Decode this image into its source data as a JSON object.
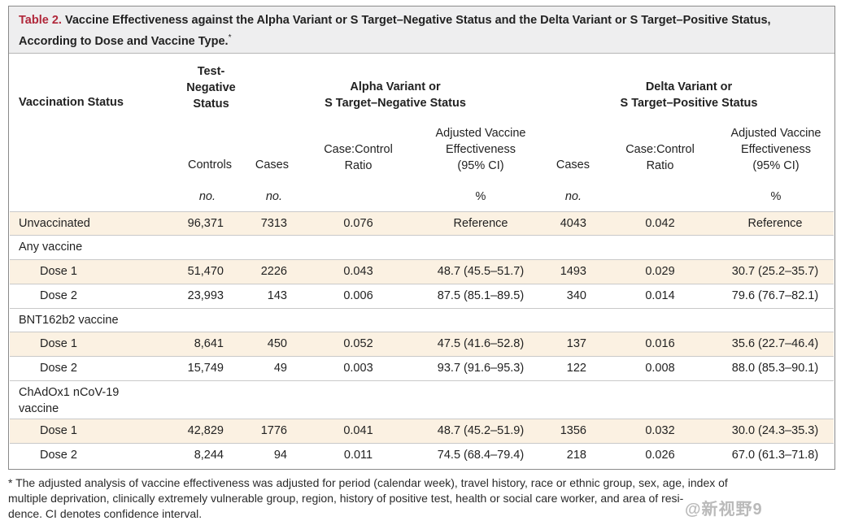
{
  "title": {
    "lead": "Table 2.",
    "text": "Vaccine Effectiveness against the Alpha Variant or S Target–Negative Status and the Delta Variant or S Target–Positive Status, According to Dose and Vaccine Type.",
    "line1": "Vaccine Effectiveness against the Alpha Variant or S Target–Negative Status and the Delta Variant or S Target–Positive Status,",
    "line2": "According to Dose and Vaccine Type.",
    "marker": "*"
  },
  "header": {
    "vaccination_status": "Vaccination Status",
    "test_negative": [
      "Test-",
      "Negative",
      "Status"
    ],
    "alpha_group": [
      "Alpha Variant or",
      "S Target–Negative Status"
    ],
    "delta_group": [
      "Delta Variant or",
      "S Target–Positive Status"
    ],
    "controls": "Controls",
    "cases": "Cases",
    "case_control_ratio": [
      "Case:Control",
      "Ratio"
    ],
    "adjusted_ve": [
      "Adjusted Vaccine",
      "Effectiveness",
      "(95% CI)"
    ],
    "units": {
      "controls": "no.",
      "cases": "no.",
      "ve": "%",
      "delta_cases": "no.",
      "delta_ve": "%"
    }
  },
  "rows": [
    {
      "label": "Unvaccinated",
      "controls": "96,371",
      "a_cases": "7313",
      "a_ratio": "0.076",
      "a_ve": "Reference",
      "d_cases": "4043",
      "d_ratio": "0.042",
      "d_ve": "Reference"
    },
    {
      "label": "Any vaccine"
    },
    {
      "label": "Dose 1",
      "controls": "51,470",
      "a_cases": "2226",
      "a_ratio": "0.043",
      "a_ve": "48.7 (45.5–51.7)",
      "d_cases": "1493",
      "d_ratio": "0.029",
      "d_ve": "30.7 (25.2–35.7)"
    },
    {
      "label": "Dose 2",
      "controls": "23,993",
      "a_cases": "143",
      "a_ratio": "0.006",
      "a_ve": "87.5 (85.1–89.5)",
      "d_cases": "340",
      "d_ratio": "0.014",
      "d_ve": "79.6 (76.7–82.1)"
    },
    {
      "label": "BNT162b2 vaccine"
    },
    {
      "label": "Dose 1",
      "controls": "8,641",
      "a_cases": "450",
      "a_ratio": "0.052",
      "a_ve": "47.5 (41.6–52.8)",
      "d_cases": "137",
      "d_ratio": "0.016",
      "d_ve": "35.6 (22.7–46.4)"
    },
    {
      "label": "Dose 2",
      "controls": "15,749",
      "a_cases": "49",
      "a_ratio": "0.003",
      "a_ve": "93.7 (91.6–95.3)",
      "d_cases": "122",
      "d_ratio": "0.008",
      "d_ve": "88.0 (85.3–90.1)"
    },
    {
      "label": "ChAdOx1 nCoV-19",
      "label2": "vaccine"
    },
    {
      "label": "Dose 1",
      "controls": "42,829",
      "a_cases": "1776",
      "a_ratio": "0.041",
      "a_ve": "48.7 (45.2–51.9)",
      "d_cases": "1356",
      "d_ratio": "0.032",
      "d_ve": "30.0 (24.3–35.3)"
    },
    {
      "label": "Dose 2",
      "controls": "8,244",
      "a_cases": "94",
      "a_ratio": "0.011",
      "a_ve": "74.5 (68.4–79.4)",
      "d_cases": "218",
      "d_ratio": "0.026",
      "d_ve": "67.0 (61.3–71.8)"
    }
  ],
  "footnote": {
    "lines": [
      "* The adjusted analysis of vaccine effectiveness was adjusted for period (calendar week), travel history, race or ethnic group, sex, age, index of",
      "multiple deprivation, clinically extremely vulnerable group, region, history of positive test, health or social care worker, and area of resi-",
      "dence. CI denotes confidence interval."
    ]
  },
  "watermark": "@新视野9",
  "colors": {
    "title_lead": "#b0273a",
    "title_bg": "#eeeeef",
    "band": "#fbf1e2"
  }
}
